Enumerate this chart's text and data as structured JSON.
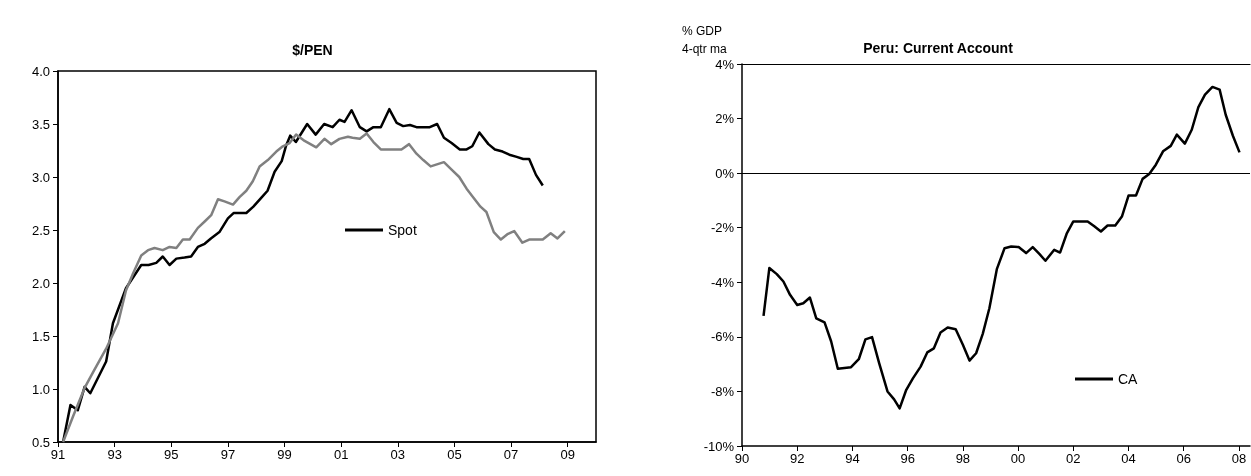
{
  "chart_data": [
    {
      "type": "line",
      "title": "$/PEN",
      "xlim": [
        1991,
        2010
      ],
      "xticks": [
        {
          "value": 1991,
          "label": "91"
        },
        {
          "value": 1993,
          "label": "93"
        },
        {
          "value": 1995,
          "label": "95"
        },
        {
          "value": 1997,
          "label": "97"
        },
        {
          "value": 1999,
          "label": "99"
        },
        {
          "value": 2001,
          "label": "01"
        },
        {
          "value": 2003,
          "label": "03"
        },
        {
          "value": 2005,
          "label": "05"
        },
        {
          "value": 2007,
          "label": "07"
        },
        {
          "value": 2009,
          "label": "09"
        }
      ],
      "ylim": [
        0.5,
        4.0
      ],
      "yticks": [
        {
          "value": 0.5,
          "label": "0.5"
        },
        {
          "value": 1,
          "label": "1.0"
        },
        {
          "value": 1.5,
          "label": "1.5"
        },
        {
          "value": 2,
          "label": "2.0"
        },
        {
          "value": 2.5,
          "label": "2.5"
        },
        {
          "value": 3,
          "label": "3.0"
        },
        {
          "value": 3.5,
          "label": "3.5"
        },
        {
          "value": 4,
          "label": "4.0"
        }
      ],
      "grid": false,
      "legend": "right",
      "marker": "none",
      "line_style": "solid",
      "series": [
        {
          "name": "Spot",
          "color": "#000000",
          "x": [
            1991.18,
            1991.44,
            1991.7,
            1991.94,
            1992.14,
            1992.7,
            1992.94,
            1993.4,
            1993.94,
            1994.2,
            1994.47,
            1994.7,
            1994.94,
            1995.18,
            1995.47,
            1995.7,
            1995.94,
            1996.18,
            1996.4,
            1996.7,
            1997.0,
            1997.2,
            1997.65,
            1997.9,
            1998.2,
            1998.4,
            1998.65,
            1998.9,
            1999.06,
            1999.2,
            1999.4,
            1999.8,
            2000.1,
            2000.4,
            2000.7,
            2000.94,
            2001.12,
            2001.37,
            2001.66,
            2001.9,
            2002.14,
            2002.4,
            2002.7,
            2002.96,
            2003.19,
            2003.43,
            2003.66,
            2004.13,
            2004.39,
            2004.63,
            2004.9,
            2005.19,
            2005.43,
            2005.63,
            2005.88,
            2006.2,
            2006.43,
            2006.7,
            2006.94,
            2007.2,
            2007.43,
            2007.64,
            2007.88,
            2008.12
          ],
          "values": [
            0.5,
            0.85,
            0.8,
            1.02,
            0.96,
            1.26,
            1.62,
            1.95,
            2.17,
            2.17,
            2.19,
            2.25,
            2.17,
            2.23,
            2.24,
            2.25,
            2.34,
            2.37,
            2.42,
            2.48,
            2.61,
            2.66,
            2.66,
            2.72,
            2.81,
            2.87,
            3.05,
            3.15,
            3.3,
            3.39,
            3.33,
            3.5,
            3.4,
            3.5,
            3.47,
            3.54,
            3.52,
            3.63,
            3.47,
            3.43,
            3.47,
            3.47,
            3.64,
            3.51,
            3.48,
            3.49,
            3.47,
            3.47,
            3.5,
            3.37,
            3.32,
            3.26,
            3.26,
            3.29,
            3.42,
            3.31,
            3.26,
            3.24,
            3.21,
            3.19,
            3.17,
            3.17,
            3.02,
            2.92
          ]
        },
        {
          "color": "#808080",
          "x": [
            1991.18,
            1991.53,
            1991.94,
            1992.24,
            1992.47,
            1992.7,
            1993.12,
            1993.4,
            1993.65,
            1993.94,
            1994.18,
            1994.41,
            1994.7,
            1994.94,
            1995.18,
            1995.41,
            1995.65,
            1995.94,
            1996.18,
            1996.41,
            1996.65,
            1996.88,
            1997.18,
            1997.41,
            1997.65,
            1997.88,
            1998.12,
            1998.41,
            1998.71,
            1998.94,
            1999.18,
            1999.41,
            1999.71,
            2000.12,
            2000.41,
            2000.65,
            2000.94,
            2001.24,
            2001.4,
            2001.66,
            2001.9,
            2002.14,
            2002.4,
            2003.13,
            2003.4,
            2003.66,
            2003.9,
            2004.16,
            2004.63,
            2004.9,
            2005.17,
            2005.43,
            2005.66,
            2005.92,
            2006.13,
            2006.39,
            2006.64,
            2006.87,
            2007.11,
            2007.4,
            2007.64,
            2008.12,
            2008.4,
            2008.64,
            2008.9
          ],
          "values": [
            0.5,
            0.74,
            1.01,
            1.16,
            1.27,
            1.38,
            1.62,
            1.93,
            2.09,
            2.26,
            2.31,
            2.33,
            2.31,
            2.34,
            2.33,
            2.41,
            2.41,
            2.52,
            2.58,
            2.64,
            2.79,
            2.77,
            2.74,
            2.81,
            2.87,
            2.96,
            3.1,
            3.16,
            3.24,
            3.29,
            3.32,
            3.4,
            3.34,
            3.28,
            3.36,
            3.31,
            3.36,
            3.38,
            3.37,
            3.36,
            3.41,
            3.33,
            3.26,
            3.26,
            3.31,
            3.22,
            3.16,
            3.1,
            3.14,
            3.07,
            3.0,
            2.89,
            2.81,
            2.72,
            2.67,
            2.48,
            2.41,
            2.46,
            2.49,
            2.38,
            2.41,
            2.41,
            2.47,
            2.42,
            2.49
          ]
        }
      ]
    },
    {
      "type": "line",
      "title": "Peru: Current Account",
      "ylabel": "% GDP\n4-qtr ma",
      "xlim": [
        1990,
        2008.4
      ],
      "xticks": [
        {
          "value": 1990,
          "label": "90"
        },
        {
          "value": 1992,
          "label": "92"
        },
        {
          "value": 1994,
          "label": "94"
        },
        {
          "value": 1996,
          "label": "96"
        },
        {
          "value": 1998,
          "label": "98"
        },
        {
          "value": 2000,
          "label": "00"
        },
        {
          "value": 2002,
          "label": "02"
        },
        {
          "value": 2004,
          "label": "04"
        },
        {
          "value": 2006,
          "label": "06"
        },
        {
          "value": 2008,
          "label": "08"
        }
      ],
      "ylim": [
        -10,
        4
      ],
      "yticks": [
        {
          "value": -10,
          "label": "-10%"
        },
        {
          "value": -8,
          "label": "-8%"
        },
        {
          "value": -6,
          "label": "-6%"
        },
        {
          "value": -4,
          "label": "-4%"
        },
        {
          "value": -2,
          "label": "-2%"
        },
        {
          "value": 0,
          "label": "0%"
        },
        {
          "value": 2,
          "label": "2%"
        },
        {
          "value": 4,
          "label": "4%"
        }
      ],
      "grid": false,
      "legend": "bottom right",
      "marker": "none",
      "line_style": "solid",
      "ref_lines": [
        {
          "axis": "y",
          "value": 0,
          "color": "#000000"
        }
      ],
      "series": [
        {
          "name": "CA",
          "color": "#000000",
          "x": [
            1990.78,
            1990.99,
            1991.26,
            1991.5,
            1991.74,
            1992.0,
            1992.22,
            1992.46,
            1992.69,
            1992.99,
            1993.23,
            1993.47,
            1993.95,
            1994.23,
            1994.47,
            1994.71,
            1994.97,
            1995.27,
            1995.51,
            1995.71,
            1995.95,
            1996.19,
            1996.47,
            1996.71,
            1996.95,
            1997.19,
            1997.45,
            1997.74,
            1998.0,
            1998.24,
            1998.48,
            1998.72,
            1998.96,
            1999.23,
            1999.51,
            1999.75,
            2000.02,
            2000.29,
            2000.53,
            2000.77,
            2000.99,
            2001.31,
            2001.52,
            2001.76,
            2002.0,
            2002.52,
            2002.76,
            2003.0,
            2003.24,
            2003.52,
            2003.76,
            2004.0,
            2004.27,
            2004.51,
            2004.75,
            2004.99,
            2005.25,
            2005.53,
            2005.75,
            2006.04,
            2006.29,
            2006.53,
            2006.77,
            2007.04,
            2007.3,
            2007.52,
            2007.78,
            2008.02
          ],
          "values": [
            -5.23,
            -3.48,
            -3.7,
            -3.97,
            -4.46,
            -4.83,
            -4.77,
            -4.56,
            -5.32,
            -5.47,
            -6.17,
            -7.17,
            -7.11,
            -6.82,
            -6.09,
            -6.01,
            -6.97,
            -8.0,
            -8.29,
            -8.62,
            -7.94,
            -7.52,
            -7.09,
            -6.57,
            -6.42,
            -5.84,
            -5.66,
            -5.72,
            -6.29,
            -6.87,
            -6.6,
            -5.89,
            -4.95,
            -3.52,
            -2.75,
            -2.69,
            -2.71,
            -2.93,
            -2.71,
            -2.96,
            -3.21,
            -2.81,
            -2.91,
            -2.22,
            -1.77,
            -1.77,
            -1.95,
            -2.14,
            -1.92,
            -1.92,
            -1.59,
            -0.82,
            -0.82,
            -0.21,
            -0.03,
            0.31,
            0.8,
            1.0,
            1.41,
            1.08,
            1.59,
            2.42,
            2.88,
            3.16,
            3.06,
            2.14,
            1.37,
            0.76
          ]
        }
      ]
    }
  ]
}
